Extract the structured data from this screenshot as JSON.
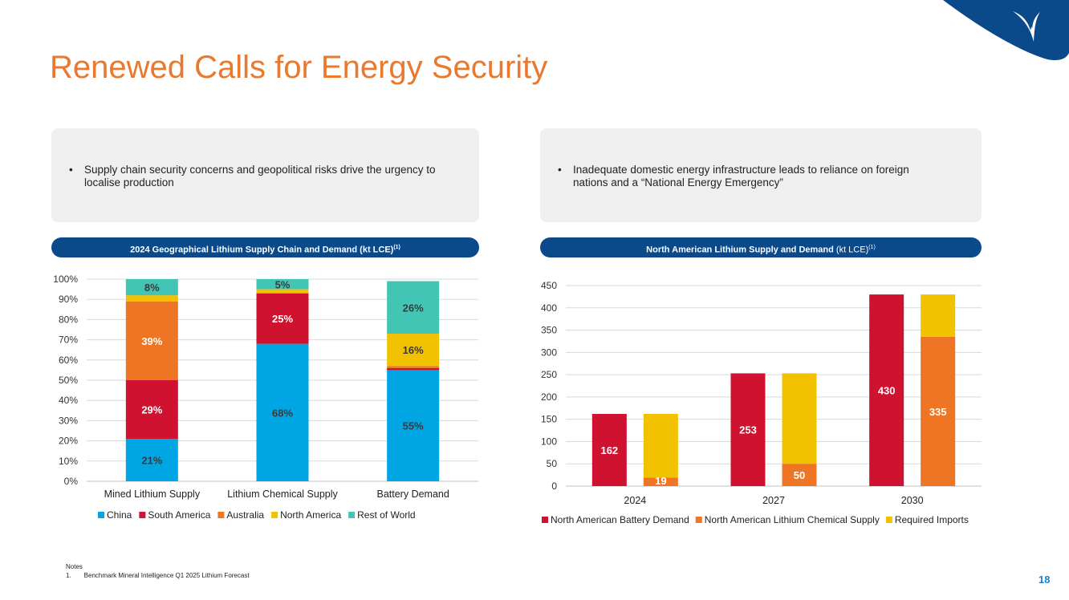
{
  "page": {
    "title": "Renewed Calls for Energy Security",
    "page_number": "18",
    "brand_color": "#0B4A8A",
    "accent_color": "#E8792F"
  },
  "boxes": {
    "left_bullet": "Supply chain security concerns and geopolitical risks drive the urgency to localise production",
    "right_bullet": "Inadequate domestic energy infrastructure leads to reliance on foreign nations and a “National Energy Emergency”",
    "bullet_symbol": "•"
  },
  "headers": {
    "left_main": "2024 Geographical Lithium Supply Chain and Demand (kt LCE)",
    "left_sup": "(1)",
    "right_main": "North American Lithium Supply and Demand",
    "right_unit": " (kt LCE)",
    "right_sup": "(1)"
  },
  "notes": {
    "heading": "Notes",
    "items": [
      "1.  Benchmark Mineral Intelligence Q1 2025 Lithium Forecast"
    ]
  },
  "chart_data": [
    {
      "id": "left",
      "type": "bar",
      "stacked": true,
      "title": "2024 Geographical Lithium Supply Chain and Demand (kt LCE)(1)",
      "categories": [
        "Mined Lithium Supply",
        "Lithium Chemical Supply",
        "Battery Demand"
      ],
      "series": [
        {
          "name": "China",
          "color": "#00A6E3",
          "values": [
            21,
            68,
            55
          ],
          "labels": [
            "21%",
            "68%",
            "55%"
          ]
        },
        {
          "name": "South America",
          "color": "#CE1230",
          "values": [
            29,
            25,
            1
          ],
          "labels": [
            "29%",
            "25%",
            ""
          ]
        },
        {
          "name": "Australia",
          "color": "#ED7523",
          "values": [
            39,
            0,
            1
          ],
          "labels": [
            "39%",
            "",
            ""
          ]
        },
        {
          "name": "North America",
          "color": "#F2C200",
          "values": [
            3,
            2,
            16
          ],
          "labels": [
            "",
            "",
            "16%"
          ]
        },
        {
          "name": "Rest of World",
          "color": "#43C5B5",
          "values": [
            8,
            5,
            26
          ],
          "labels": [
            "8%",
            "5%",
            "26%"
          ]
        }
      ],
      "yticks": [
        "0%",
        "10%",
        "20%",
        "30%",
        "40%",
        "50%",
        "60%",
        "70%",
        "80%",
        "90%",
        "100%"
      ],
      "ylim": [
        0,
        100
      ],
      "grid": true,
      "legend": "bottom"
    },
    {
      "id": "right",
      "type": "bar",
      "title": "North American Lithium Supply and Demand (kt LCE)(1)",
      "categories": [
        "2024",
        "2027",
        "2030"
      ],
      "series": [
        {
          "name": "North American Battery Demand",
          "color": "#CE1230",
          "values": [
            162,
            253,
            430
          ],
          "labels": [
            "162",
            "253",
            "430"
          ]
        },
        {
          "name": "North American Lithium Chemical Supply",
          "color": "#ED7523",
          "values": [
            19,
            50,
            335
          ],
          "labels": [
            "19",
            "50",
            "335"
          ]
        },
        {
          "name": "Required Imports",
          "color": "#F2C200",
          "values": [
            143,
            203,
            95
          ]
        }
      ],
      "note": "Second column per year stacks Lithium Chemical Supply with Required Imports",
      "yticks": [
        "0",
        "50",
        "100",
        "150",
        "200",
        "250",
        "300",
        "350",
        "400",
        "450"
      ],
      "ylim": [
        0,
        450
      ],
      "grid": true,
      "legend": "bottom"
    }
  ]
}
